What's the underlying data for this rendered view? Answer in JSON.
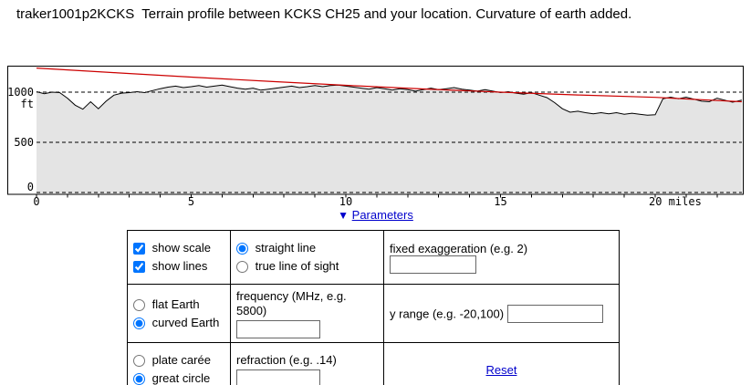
{
  "title": "traker1001p2KCKS  Terrain profile between KCKS CH25 and your location. Curvature of earth added.",
  "params_toggle": {
    "icon": "▼",
    "label": "Parameters"
  },
  "colors": {
    "terrain_fill": "#e4e4e4",
    "terrain_line": "#000000",
    "los_line": "#cc0000",
    "link": "#0000cc"
  },
  "chart_data": {
    "type": "area",
    "title": "Terrain profile between KCKS CH25 and your location",
    "xlabel": "miles",
    "ylabel": "ft",
    "xlim": [
      0,
      22.8
    ],
    "ylim": [
      0,
      1270
    ],
    "x_ticks": [
      0,
      5,
      10,
      15,
      20
    ],
    "x_tick_labels": [
      "0",
      "5",
      "10",
      "15",
      "20 miles"
    ],
    "y_ticks": [
      0,
      500,
      1000
    ],
    "y_tick_labels": [
      "0",
      "500",
      "1000"
    ],
    "grid": "horizontal-dashed",
    "legend": "none",
    "series": [
      {
        "name": "terrain elevation",
        "type": "area",
        "line_color": "#000000",
        "fill_color": "#e4e4e4",
        "points": [
          [
            0,
            1005
          ],
          [
            0.25,
            985
          ],
          [
            0.5,
            1000
          ],
          [
            0.75,
            995
          ],
          [
            1,
            940
          ],
          [
            1.25,
            870
          ],
          [
            1.5,
            830
          ],
          [
            1.75,
            905
          ],
          [
            2,
            835
          ],
          [
            2.25,
            910
          ],
          [
            2.5,
            970
          ],
          [
            2.75,
            990
          ],
          [
            3,
            995
          ],
          [
            3.25,
            1005
          ],
          [
            3.5,
            995
          ],
          [
            3.75,
            1015
          ],
          [
            4,
            1035
          ],
          [
            4.25,
            1050
          ],
          [
            4.5,
            1060
          ],
          [
            4.75,
            1045
          ],
          [
            5,
            1055
          ],
          [
            5.25,
            1065
          ],
          [
            5.5,
            1050
          ],
          [
            5.75,
            1060
          ],
          [
            6,
            1070
          ],
          [
            6.25,
            1055
          ],
          [
            6.5,
            1040
          ],
          [
            6.75,
            1030
          ],
          [
            7,
            1040
          ],
          [
            7.25,
            1020
          ],
          [
            7.5,
            1030
          ],
          [
            7.75,
            1040
          ],
          [
            8,
            1050
          ],
          [
            8.25,
            1060
          ],
          [
            8.5,
            1045
          ],
          [
            8.75,
            1055
          ],
          [
            9,
            1065
          ],
          [
            9.25,
            1055
          ],
          [
            9.5,
            1065
          ],
          [
            9.75,
            1070
          ],
          [
            10,
            1060
          ],
          [
            10.25,
            1050
          ],
          [
            10.5,
            1040
          ],
          [
            10.75,
            1030
          ],
          [
            11,
            1045
          ],
          [
            11.25,
            1035
          ],
          [
            11.5,
            1020
          ],
          [
            11.75,
            1035
          ],
          [
            12,
            1025
          ],
          [
            12.25,
            1010
          ],
          [
            12.5,
            1025
          ],
          [
            12.75,
            1040
          ],
          [
            13,
            1025
          ],
          [
            13.25,
            1035
          ],
          [
            13.5,
            1045
          ],
          [
            13.75,
            1030
          ],
          [
            14,
            1020
          ],
          [
            14.25,
            1010
          ],
          [
            14.5,
            1025
          ],
          [
            14.75,
            1010
          ],
          [
            15,
            995
          ],
          [
            15.25,
            1005
          ],
          [
            15.5,
            990
          ],
          [
            15.75,
            980
          ],
          [
            16,
            995
          ],
          [
            16.25,
            970
          ],
          [
            16.5,
            945
          ],
          [
            16.75,
            895
          ],
          [
            17,
            835
          ],
          [
            17.25,
            800
          ],
          [
            17.5,
            810
          ],
          [
            17.75,
            795
          ],
          [
            18,
            785
          ],
          [
            18.25,
            795
          ],
          [
            18.5,
            785
          ],
          [
            18.75,
            795
          ],
          [
            19,
            780
          ],
          [
            19.25,
            790
          ],
          [
            19.5,
            780
          ],
          [
            19.75,
            770
          ],
          [
            20,
            775
          ],
          [
            20.25,
            935
          ],
          [
            20.5,
            950
          ],
          [
            20.75,
            935
          ],
          [
            21,
            950
          ],
          [
            21.25,
            930
          ],
          [
            21.5,
            910
          ],
          [
            21.75,
            905
          ],
          [
            22,
            940
          ],
          [
            22.25,
            920
          ],
          [
            22.5,
            900
          ],
          [
            22.8,
            920
          ]
        ]
      },
      {
        "name": "line of sight with earth curvature",
        "type": "line",
        "line_color": "#cc0000",
        "points": [
          [
            0,
            1240
          ],
          [
            2.5,
            1195
          ],
          [
            5,
            1150
          ],
          [
            7.5,
            1108
          ],
          [
            10,
            1068
          ],
          [
            12.5,
            1032
          ],
          [
            15,
            1000
          ],
          [
            17.5,
            972
          ],
          [
            20,
            948
          ],
          [
            22.8,
            905
          ]
        ]
      }
    ]
  },
  "form": {
    "display": {
      "checkboxes": [
        {
          "label": "show scale",
          "checked": true
        },
        {
          "label": "show lines",
          "checked": true
        }
      ]
    },
    "line_type": [
      {
        "label": "straight line",
        "checked": true
      },
      {
        "label": "true line of sight",
        "checked": false
      }
    ],
    "earth": [
      {
        "label": "flat Earth",
        "checked": false
      },
      {
        "label": "curved Earth",
        "checked": true
      }
    ],
    "projection": [
      {
        "label": "plate carée",
        "checked": false
      },
      {
        "label": "great circle",
        "checked": true
      }
    ],
    "fields": {
      "fixed_exaggeration": {
        "label": "fixed exaggeration (e.g. 2)",
        "value": ""
      },
      "frequency": {
        "label": "frequency (MHz, e.g. 5800)",
        "value": ""
      },
      "y_range": {
        "label": "y range (e.g. -20,100)",
        "value": ""
      },
      "refraction": {
        "label": "refraction (e.g. .14)",
        "value": ""
      }
    },
    "reset_label": "Reset"
  }
}
